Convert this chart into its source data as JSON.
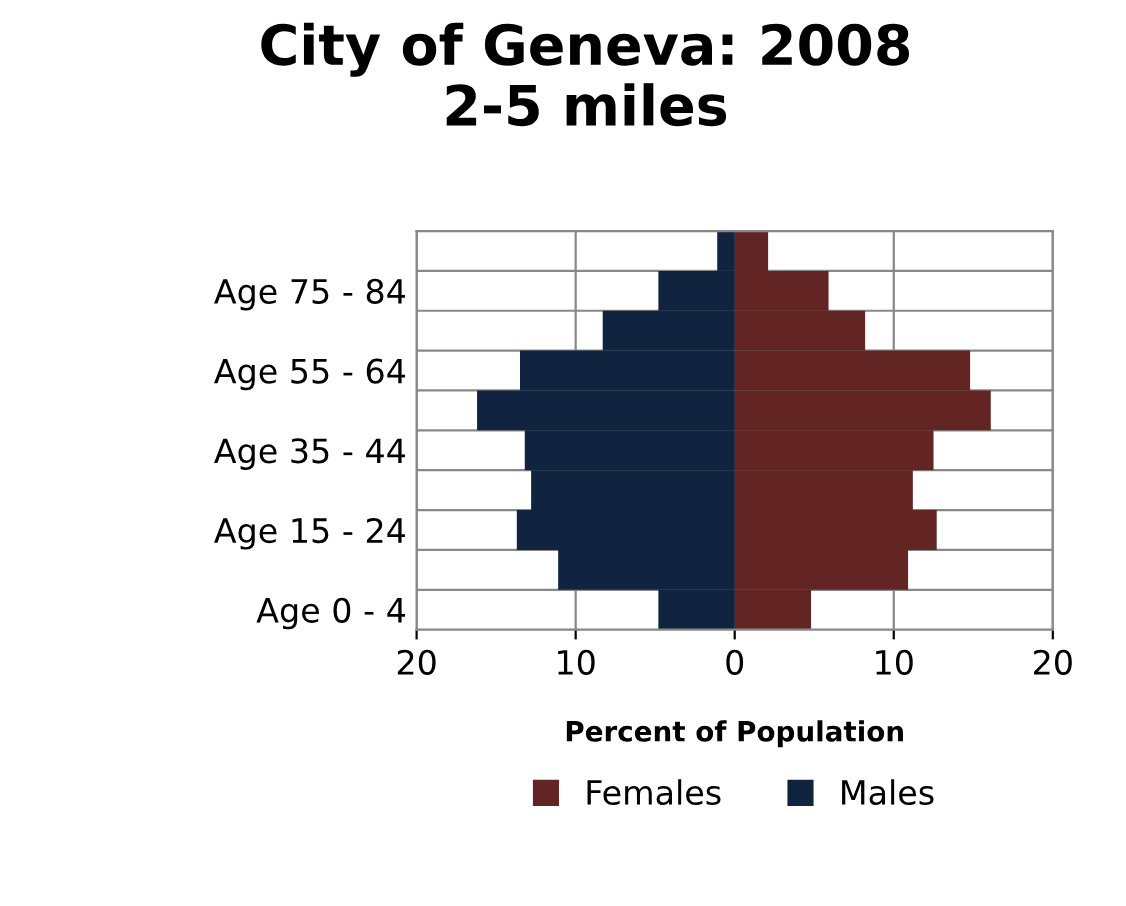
{
  "chart_data": {
    "type": "bar",
    "orientation": "horizontal",
    "stacked": true,
    "title": "City of Geneva: 2008\n2-5 miles",
    "xlabel": "Percent of Population",
    "categories": [
      null,
      "Age 75 - 84",
      null,
      "Age 55 - 64",
      null,
      "Age 35 - 44",
      null,
      "Age 15 - 24",
      null,
      "Age 0 - 4"
    ],
    "series": [
      {
        "name": "Females",
        "color": "#632523",
        "values": [
          2.1,
          5.9,
          8.2,
          14.8,
          16.1,
          12.5,
          11.2,
          12.7,
          10.9,
          4.8
        ]
      },
      {
        "name": "Males",
        "color": "#10243f",
        "values": [
          -1.1,
          -4.8,
          -8.3,
          -13.5,
          -16.2,
          -13.2,
          -12.8,
          -13.7,
          -11.1,
          -4.8
        ]
      }
    ],
    "xlim": [
      -20,
      20
    ],
    "xticks": [
      {
        "value": -20,
        "label": "20"
      },
      {
        "value": -10,
        "label": "10"
      },
      0,
      10,
      20
    ],
    "grid": true,
    "legend": "bottom"
  }
}
